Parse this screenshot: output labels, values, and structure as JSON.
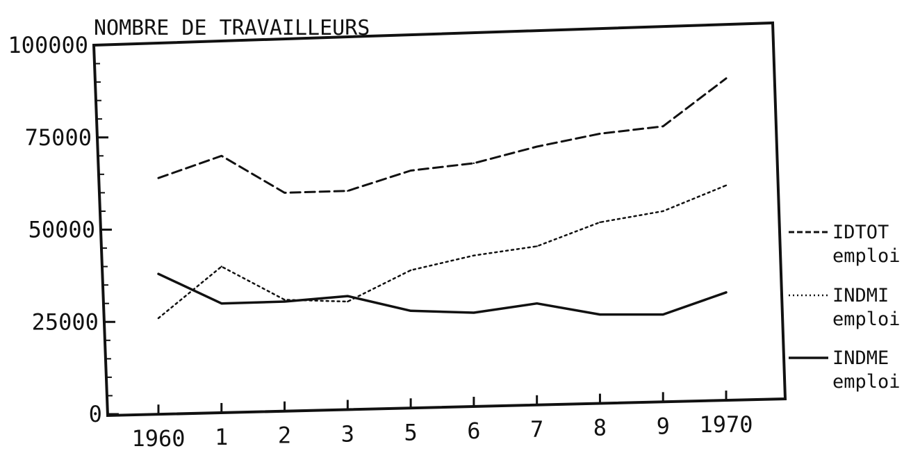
{
  "chart_data": {
    "type": "line",
    "title": "NOMBRE DE TRAVAILLEURS",
    "xlabel": "",
    "ylabel": "",
    "categories": [
      "1960",
      "1",
      "2",
      "3",
      "5",
      "6",
      "7",
      "8",
      "9",
      "1970"
    ],
    "ylim": [
      0,
      100000
    ],
    "yticks": [
      "0",
      "25000",
      "50000",
      "75000",
      "100000"
    ],
    "grid": false,
    "legend_position": "right",
    "series": [
      {
        "name": "IDTOT",
        "subname": "emploi",
        "style": "dashed",
        "values": [
          64000,
          70000,
          60000,
          60500,
          66000,
          68000,
          72500,
          76000,
          78000,
          91000
        ]
      },
      {
        "name": "INDMI",
        "subname": "emploi",
        "style": "dotted",
        "values": [
          26000,
          40000,
          31000,
          30500,
          39000,
          43000,
          45500,
          52000,
          55000,
          62000
        ]
      },
      {
        "name": "INDME",
        "subname": "emploi",
        "style": "solid",
        "values": [
          38000,
          30000,
          30500,
          32000,
          28000,
          27500,
          30000,
          27000,
          27000,
          33000
        ]
      }
    ]
  }
}
